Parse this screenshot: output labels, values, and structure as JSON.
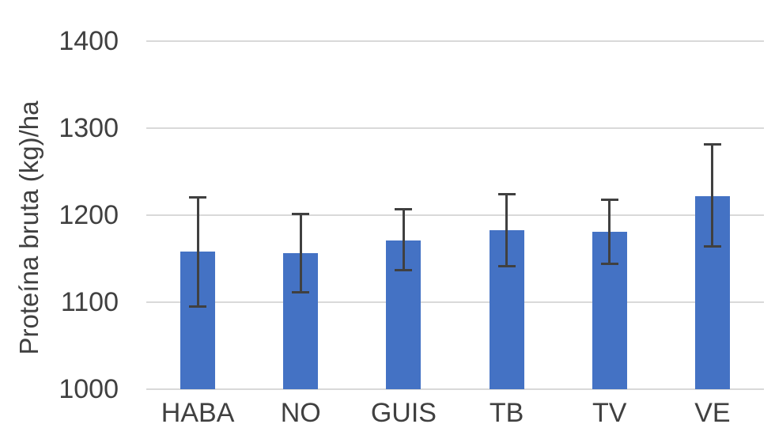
{
  "chart_data": {
    "type": "bar",
    "title": "",
    "xlabel": "",
    "ylabel": "Proteína bruta (kg)/ha",
    "categories": [
      "HABA",
      "NO",
      "GUIS",
      "TB",
      "TV",
      "VE"
    ],
    "series": [
      {
        "name": "Proteína bruta",
        "values": [
          1158,
          1156,
          1171,
          1183,
          1181,
          1222
        ],
        "error_upper": [
          1221,
          1202,
          1207,
          1225,
          1218,
          1282
        ],
        "error_lower": [
          1095,
          1111,
          1136,
          1141,
          1144,
          1164
        ]
      }
    ],
    "ylim": [
      1000,
      1400
    ],
    "yticks": [
      1000,
      1100,
      1200,
      1300,
      1400
    ],
    "grid": true,
    "legend": "none",
    "colors": {
      "bar": "#4472C4",
      "error_bar": "#404040",
      "gridline": "#D9D9D9",
      "text": "#404040",
      "background": "#FFFFFF"
    }
  }
}
